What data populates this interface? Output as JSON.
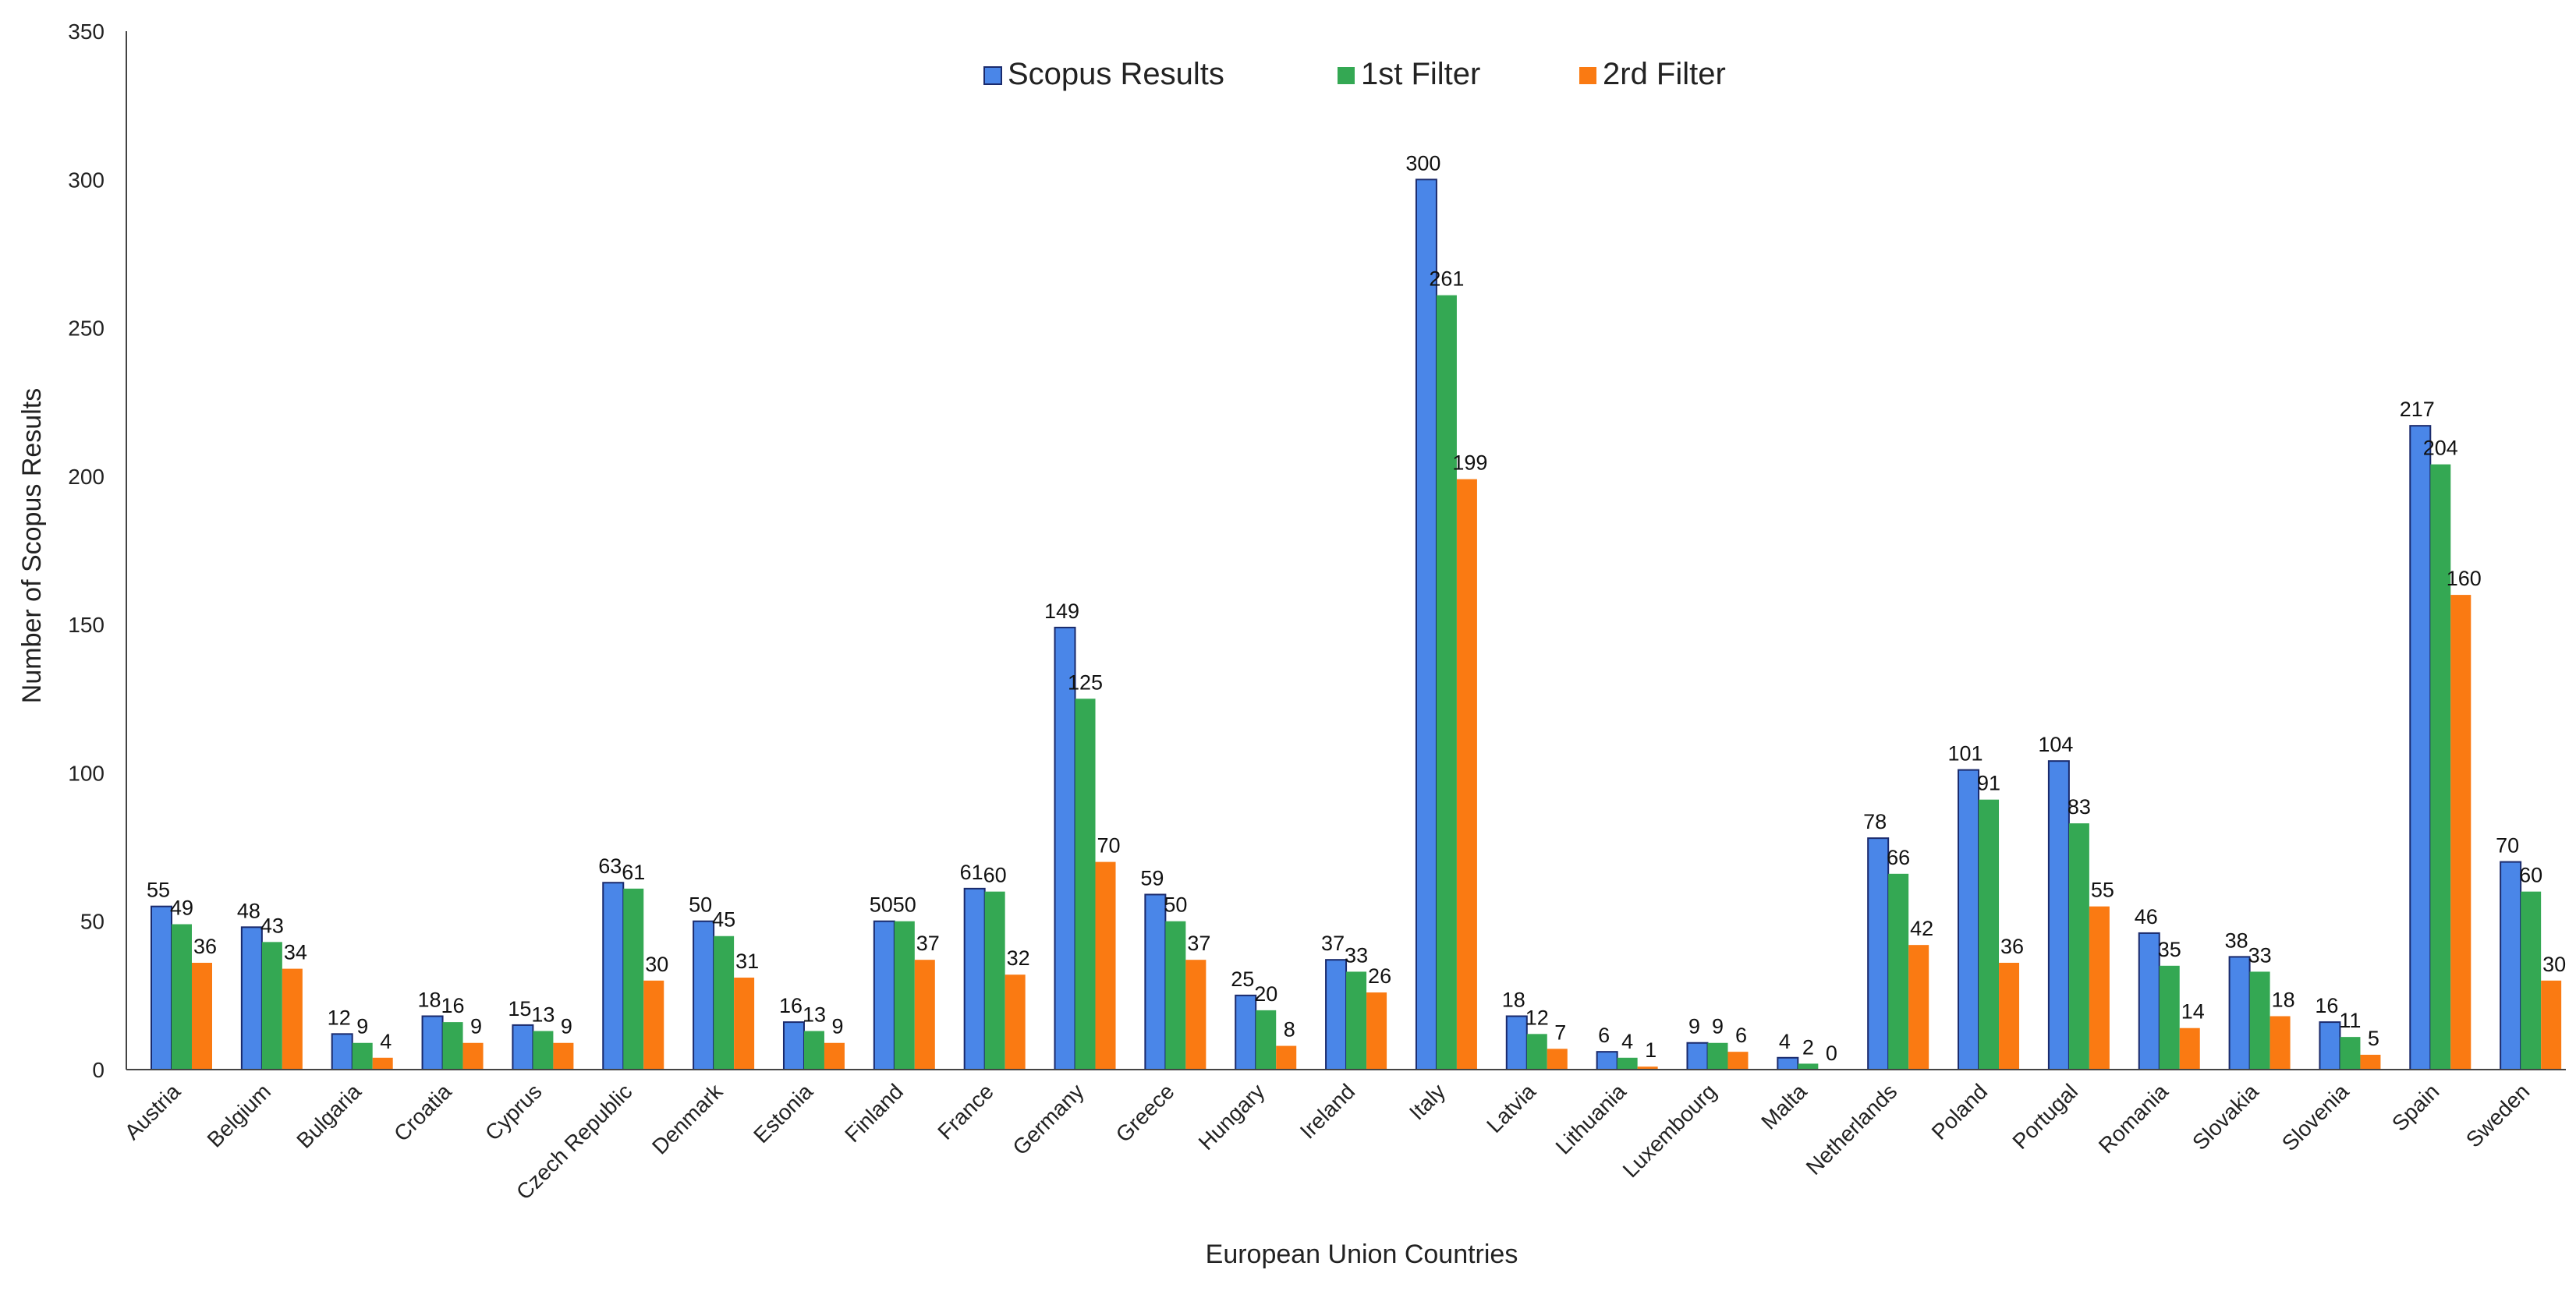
{
  "chart_data": {
    "type": "bar",
    "title": "",
    "xlabel": "European Union Countries",
    "ylabel": "Number of Scopus Results",
    "ylim": [
      0,
      350
    ],
    "yticks": [
      "0",
      "50",
      "100",
      "150",
      "200",
      "250",
      "300",
      "350"
    ],
    "legend_position": "top-center",
    "categories": [
      "Austria",
      "Belgium",
      "Bulgaria",
      "Croatia",
      "Cyprus",
      "Czech Republic",
      "Denmark",
      "Estonia",
      "Finland",
      "France",
      "Germany",
      "Greece",
      "Hungary",
      "Ireland",
      "Italy",
      "Latvia",
      "Lithuania",
      "Luxembourg",
      "Malta",
      "Netherlands",
      "Poland",
      "Portugal",
      "Romania",
      "Slovakia",
      "Slovenia",
      "Spain",
      "Sweden"
    ],
    "series": [
      {
        "name": "Scopus Results",
        "color": "#4a86e8",
        "edge": "#1a2a6c",
        "values": [
          55,
          48,
          12,
          18,
          15,
          63,
          50,
          16,
          50,
          61,
          149,
          59,
          25,
          37,
          300,
          18,
          6,
          9,
          4,
          78,
          101,
          104,
          46,
          38,
          16,
          217,
          70
        ]
      },
      {
        "name": "1st Filter",
        "color": "#34a853",
        "edge": "#34a853",
        "values": [
          49,
          43,
          9,
          16,
          13,
          61,
          45,
          13,
          50,
          60,
          125,
          50,
          20,
          33,
          261,
          12,
          4,
          9,
          2,
          66,
          91,
          83,
          35,
          33,
          11,
          204,
          60
        ]
      },
      {
        "name": "2rd Filter",
        "color": "#fa7a12",
        "edge": "#fa7a12",
        "values": [
          36,
          34,
          4,
          9,
          9,
          30,
          31,
          9,
          37,
          32,
          70,
          37,
          8,
          26,
          199,
          7,
          1,
          6,
          0,
          42,
          36,
          55,
          14,
          18,
          5,
          160,
          30
        ]
      }
    ]
  }
}
